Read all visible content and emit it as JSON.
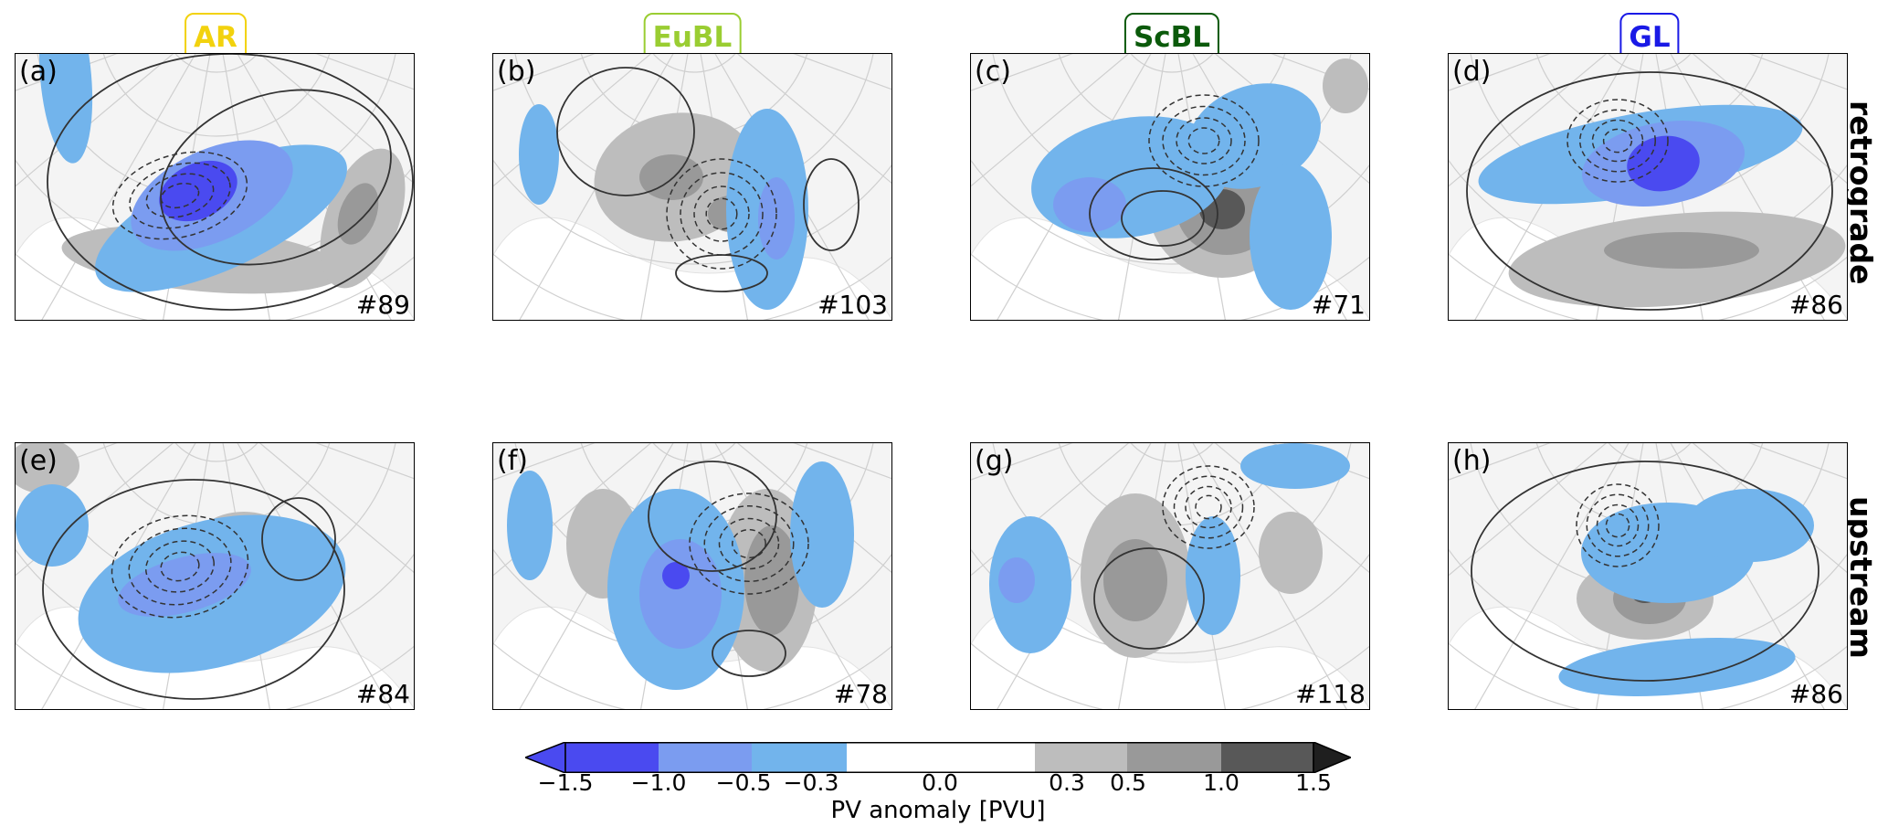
{
  "column_headers": [
    {
      "label": "AR",
      "color": "#f2d20e"
    },
    {
      "label": "EuBL",
      "color": "#9acd32"
    },
    {
      "label": "ScBL",
      "color": "#0b5a0b"
    },
    {
      "label": "GL",
      "color": "#1a1ae6"
    }
  ],
  "row_labels": {
    "top": "retrograde",
    "bottom": "upstream"
  },
  "panels": [
    {
      "label": "(a)",
      "count": "#89"
    },
    {
      "label": "(b)",
      "count": "#103"
    },
    {
      "label": "(c)",
      "count": "#71"
    },
    {
      "label": "(d)",
      "count": "#86"
    },
    {
      "label": "(e)",
      "count": "#84"
    },
    {
      "label": "(f)",
      "count": "#78"
    },
    {
      "label": "(g)",
      "count": "#118"
    },
    {
      "label": "(h)",
      "count": "#86"
    }
  ],
  "colorbar": {
    "ticks": [
      "−1.5",
      "−1.0",
      "−0.5",
      "−0.3",
      "0.0",
      "0.3",
      "0.5",
      "1.0",
      "1.5"
    ],
    "label": "PV anomaly [PVU]",
    "colors": {
      "neg_strong": "#4a4af0",
      "neg_mid": "#7b9cf0",
      "neg_weak": "#72b4ec",
      "neutral": "#ffffff",
      "pos_weak": "#bdbdbd",
      "pos_mid": "#999999",
      "pos_strong": "#585858",
      "pos_max": "#1f1f1f"
    }
  }
}
